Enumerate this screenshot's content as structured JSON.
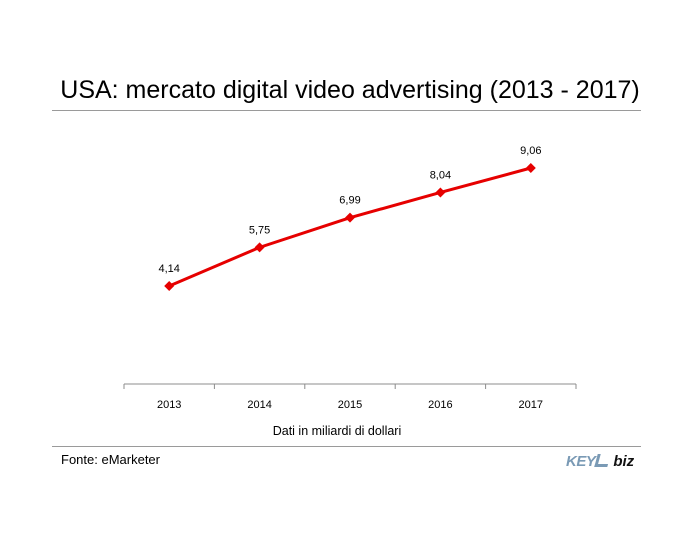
{
  "title": "USA: mercato digital video advertising (2013 - 2017)",
  "source": "Fonte: eMarketer",
  "logo": {
    "part_a": "KEY",
    "part_b": "biz"
  },
  "colors": {
    "series": "#e60000",
    "axis": "#8c8c8c",
    "rule": "#9a9a9a"
  },
  "chart_data": {
    "type": "line",
    "categories": [
      "2013",
      "2014",
      "2015",
      "2016",
      "2017"
    ],
    "values": [
      4.14,
      5.75,
      6.99,
      8.04,
      9.06
    ],
    "data_labels": [
      "4,14",
      "5,75",
      "6,99",
      "8,04",
      "9,06"
    ],
    "xlabel": "Dati in miliardi di dollari",
    "ylabel": "",
    "ylim": [
      0,
      10
    ],
    "grid": false,
    "legend": "none",
    "marker": "diamond"
  }
}
